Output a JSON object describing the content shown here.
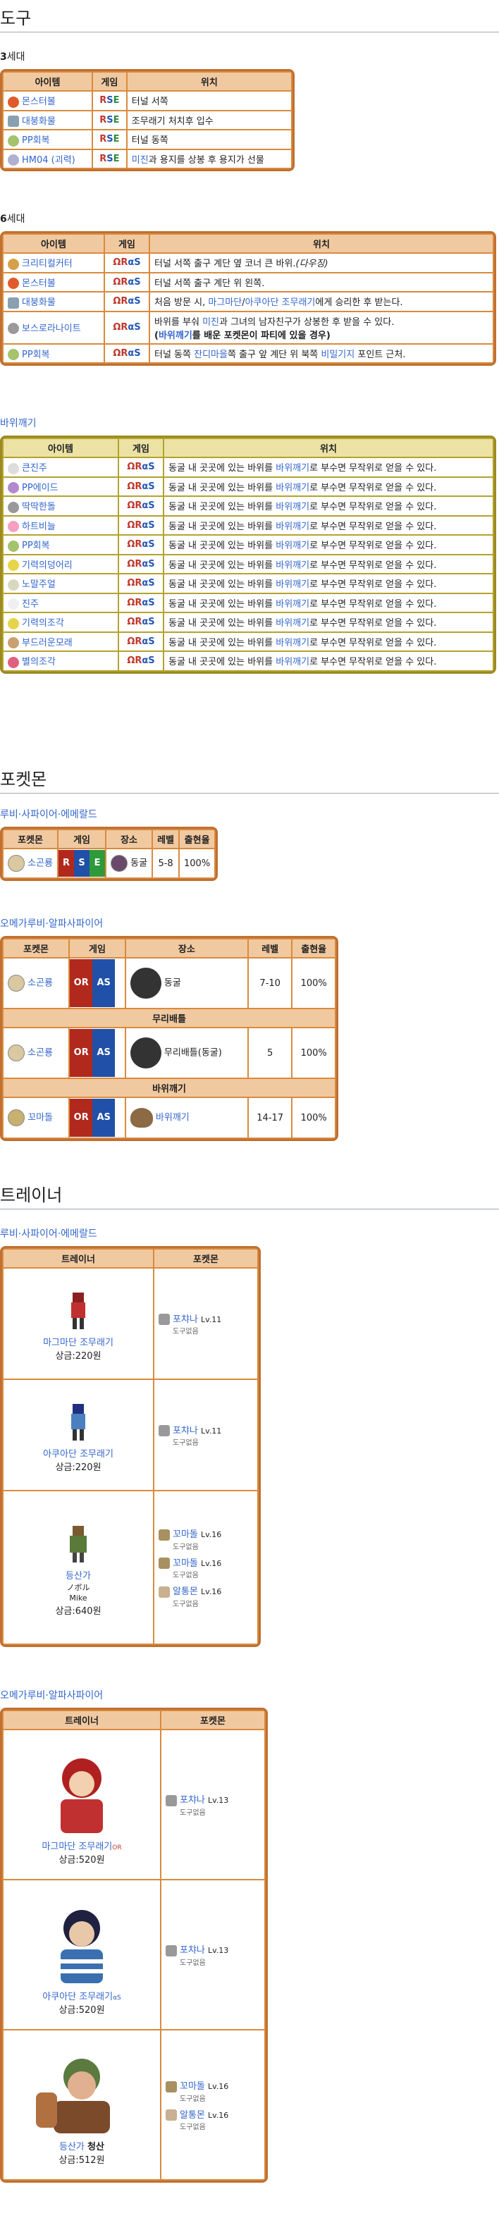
{
  "items_section": {
    "title": "도구",
    "gen3": {
      "label_num": "3",
      "label_suffix": "세대",
      "headers": [
        "아이템",
        "게임",
        "위치"
      ],
      "rows": [
        {
          "item": "몬스터볼",
          "loc": "터널 서쪽",
          "color": "#e05b2b"
        },
        {
          "item": "대붕화물",
          "loc": "조무래기 처치후 입수",
          "color": "#8aa0b0"
        },
        {
          "item": "PP회복",
          "loc": "터널 동쪽",
          "color": "#a4c36d"
        },
        {
          "item": "HM04 (괴력)",
          "loc_pre": "",
          "loc_link": "미진",
          "loc_post": "과 용지를 상봉 후 용지가 선물",
          "color": "#b0b0d0"
        }
      ]
    },
    "gen6": {
      "label_num": "6",
      "label_suffix": "세대",
      "headers": [
        "아이템",
        "게임",
        "위치"
      ],
      "rows": [
        {
          "item": "크리티컬커터",
          "loc": "터널 서쪽 출구 계단 옆 코너 큰 바위.",
          "loc_em": "(다우징)",
          "color": "#d6a04a"
        },
        {
          "item": "몬스터볼",
          "loc": "터널 서쪽 출구 계단 위 왼쪽.",
          "color": "#e05b2b"
        },
        {
          "item": "대붕화물",
          "loc_pre": "처음 방문 시, ",
          "loc_link1": "마그마단",
          "loc_mid": "/",
          "loc_link2": "아쿠아단 조무래기",
          "loc_post": "에게 승리한 후 받는다.",
          "color": "#8aa0b0"
        },
        {
          "item": "보스로라나이트",
          "loc_pre": "바위를 부숴 ",
          "loc_link1": "미진",
          "loc_mid": "과 그녀의 남자친구가 상봉한 후 받을 수 있다.",
          "loc_line2_pre": "(",
          "loc_line2_link": "바위깨기",
          "loc_line2_post": "를 배운 포켓몬이 파티에 있을 경우)",
          "color": "#9a9a9a"
        },
        {
          "item": "PP회복",
          "loc_pre": "터널 동쪽 ",
          "loc_link1": "잔디마을",
          "loc_mid": "쪽 출구 앞 계단 위 북쪽 ",
          "loc_link2": "비밀기지",
          "loc_post": " 포인트 근처.",
          "color": "#a4c36d"
        }
      ]
    },
    "rocksmash": {
      "title": "바위깨기",
      "headers": [
        "아이템",
        "게임",
        "위치"
      ],
      "loc_pre": "동굴 내 곳곳에 있는 바위를 ",
      "loc_link": "바위깨기",
      "loc_post": "로 부수면 무작위로 얻을 수 있다.",
      "rows": [
        {
          "item": "큰진주",
          "color": "#ddd"
        },
        {
          "item": "PP에이드",
          "color": "#b18ad0"
        },
        {
          "item": "딱딱한돌",
          "color": "#999"
        },
        {
          "item": "하트비늘",
          "color": "#f4a0c0"
        },
        {
          "item": "PP회복",
          "color": "#a4c36d"
        },
        {
          "item": "기력의덩어리",
          "color": "#e8d44a"
        },
        {
          "item": "노말주얼",
          "color": "#d8d8c0"
        },
        {
          "item": "진주",
          "color": "#f0f0f0"
        },
        {
          "item": "기력의조각",
          "color": "#e8d44a"
        },
        {
          "item": "부드러운모래",
          "color": "#c9a070"
        },
        {
          "item": "별의조각",
          "color": "#e06080"
        }
      ]
    },
    "game_oras_a": "ΩR",
    "game_oras_b": "αS",
    "game_rse": {
      "r": "R",
      "s": "S",
      "e": "E"
    }
  },
  "pokemon_section": {
    "title": "포켓몬",
    "rse_sub": "루비·사파이어·에메랄드",
    "rse_headers": [
      "포켓몬",
      "게임",
      "장소",
      "레벨",
      "출현율"
    ],
    "rse_row": {
      "pokemon": "소곤룡",
      "r": "R",
      "s": "S",
      "e": "E",
      "place": "동굴",
      "level": "5-8",
      "rate": "100%"
    },
    "oras_sub": "오메가루비·알파사파이어",
    "oras_headers": [
      "포켓몬",
      "게임",
      "장소",
      "레벨",
      "출현율"
    ],
    "oras_rows": [
      {
        "pokemon": "소곤룡",
        "or": "OR",
        "as": "AS",
        "place": "동굴",
        "level": "7-10",
        "rate": "100%"
      }
    ],
    "horde_label": "무리배틀",
    "horde_row": {
      "pokemon": "소곤룡",
      "or": "OR",
      "as": "AS",
      "place": "무리배틀(동굴)",
      "level": "5",
      "rate": "100%"
    },
    "smash_label": "바위깨기",
    "smash_row": {
      "pokemon": "꼬마돌",
      "or": "OR",
      "as": "AS",
      "place": "바위깨기",
      "level": "14-17",
      "rate": "100%"
    }
  },
  "trainer_section": {
    "title": "트레이너",
    "rse_sub": "루비·사파이어·에메랄드",
    "headers": [
      "트레이너",
      "포켓몬"
    ],
    "rse": [
      {
        "name": "마그마단 조무래기",
        "reward": "상금:220원",
        "pokemon": [
          {
            "name": "포챠나",
            "lv": "Lv.11",
            "item": "도구없음"
          }
        ]
      },
      {
        "name": "아쿠아단 조무래기",
        "reward": "상금:220원",
        "pokemon": [
          {
            "name": "포챠나",
            "lv": "Lv.11",
            "item": "도구없음"
          }
        ]
      },
      {
        "name": "등산가",
        "jp": "ノボル",
        "en": "Mike",
        "reward": "상금:640원",
        "pokemon": [
          {
            "name": "꼬마돌",
            "lv": "Lv.16",
            "item": "도구없음"
          },
          {
            "name": "꼬마돌",
            "lv": "Lv.16",
            "item": "도구없음"
          },
          {
            "name": "알통몬",
            "lv": "Lv.16",
            "item": "도구없음"
          }
        ]
      }
    ],
    "oras_sub": "오메가루비·알파사파이어",
    "oras": [
      {
        "name": "마그마단 조무래기",
        "tag": "OR",
        "reward": "상금:520원",
        "pokemon": [
          {
            "name": "포챠나",
            "lv": "Lv.13",
            "item": "도구없음"
          }
        ]
      },
      {
        "name": "아쿠아단 조무래기",
        "tag": "αS",
        "reward": "상금:520원",
        "pokemon": [
          {
            "name": "포챠나",
            "lv": "Lv.13",
            "item": "도구없음"
          }
        ]
      },
      {
        "name": "등산가",
        "name2": "청산",
        "reward": "상금:512원",
        "pokemon": [
          {
            "name": "꼬마돌",
            "lv": "Lv.16",
            "item": "도구없음"
          },
          {
            "name": "알통몬",
            "lv": "Lv.16",
            "item": "도구없음"
          }
        ]
      }
    ]
  }
}
